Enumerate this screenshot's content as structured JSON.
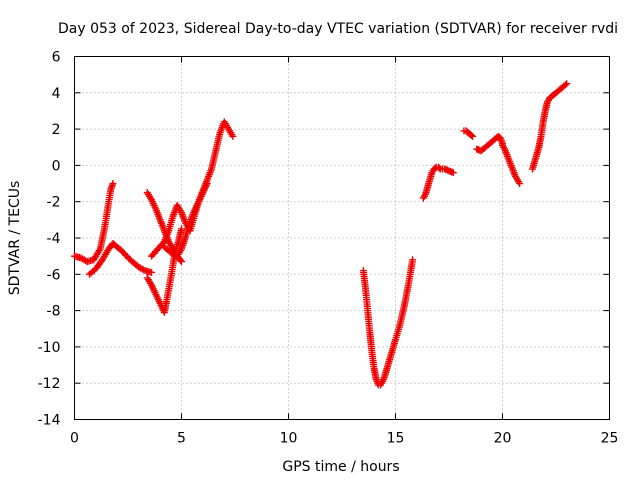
{
  "chart_data": {
    "type": "scatter",
    "title": "Day 053 of 2023, Sidereal Day-to-day VTEC variation (SDTVAR) for receiver rvdi",
    "xlabel": "GPS time / hours",
    "ylabel": "SDTVAR / TECUs",
    "xlim": [
      0,
      25
    ],
    "ylim": [
      -14,
      6
    ],
    "xticks": [
      0,
      5,
      10,
      15,
      20,
      25
    ],
    "yticks": [
      -14,
      -12,
      -10,
      -8,
      -6,
      -4,
      -2,
      0,
      2,
      4,
      6
    ],
    "grid": true,
    "legend": "none",
    "marker": "plus",
    "color": "#ee0000",
    "series": [
      {
        "x": [
          0.0,
          0.3,
          0.6,
          0.9,
          1.2,
          1.4,
          1.6,
          1.7,
          1.8
        ],
        "y": [
          -5.0,
          -5.1,
          -5.3,
          -5.2,
          -4.6,
          -3.5,
          -2.0,
          -1.3,
          -1.0
        ]
      },
      {
        "x": [
          0.7,
          1.0,
          1.3,
          1.6,
          1.8,
          2.2,
          2.6,
          3.0,
          3.3,
          3.6
        ],
        "y": [
          -6.0,
          -5.7,
          -5.2,
          -4.6,
          -4.3,
          -4.7,
          -5.2,
          -5.6,
          -5.8,
          -5.9
        ]
      },
      {
        "x": [
          3.4,
          3.6,
          3.8,
          4.0,
          4.2,
          4.3,
          4.5,
          4.7,
          4.9,
          5.0
        ],
        "y": [
          -6.2,
          -6.6,
          -7.1,
          -7.6,
          -8.1,
          -7.5,
          -6.2,
          -4.8,
          -4.0,
          -3.5
        ]
      },
      {
        "x": [
          3.4,
          3.6,
          3.8,
          4.0,
          4.2,
          4.4,
          4.6,
          4.8,
          5.0
        ],
        "y": [
          -1.5,
          -1.9,
          -2.4,
          -3.0,
          -3.6,
          -4.2,
          -4.6,
          -5.0,
          -5.3
        ]
      },
      {
        "x": [
          3.6,
          3.9,
          4.2,
          4.4,
          4.6,
          4.8,
          5.0,
          5.2,
          5.4,
          5.6,
          5.8,
          6.0,
          6.2
        ],
        "y": [
          -5.0,
          -4.6,
          -4.2,
          -3.6,
          -2.8,
          -2.2,
          -2.6,
          -3.2,
          -3.6,
          -2.8,
          -2.0,
          -1.5,
          -1.0
        ]
      },
      {
        "x": [
          4.2,
          4.5,
          4.8,
          5.0,
          5.2,
          5.4,
          5.6,
          5.8,
          6.0,
          6.2,
          6.4,
          6.6,
          6.8,
          7.0,
          7.2,
          7.4
        ],
        "y": [
          -4.5,
          -4.8,
          -5.0,
          -4.6,
          -3.9,
          -3.1,
          -2.5,
          -2.0,
          -1.4,
          -0.8,
          -0.2,
          0.8,
          1.8,
          2.4,
          2.0,
          1.6
        ]
      },
      {
        "x": [
          13.5,
          13.6,
          13.7,
          13.8,
          13.9,
          14.0,
          14.1,
          14.2,
          14.3,
          14.4,
          14.5,
          14.6,
          14.7,
          14.8,
          14.9,
          15.0,
          15.2,
          15.4,
          15.6,
          15.8
        ],
        "y": [
          -5.8,
          -6.8,
          -8.0,
          -9.2,
          -10.3,
          -11.2,
          -11.8,
          -12.1,
          -12.1,
          -11.9,
          -11.6,
          -11.2,
          -10.8,
          -10.4,
          -10.0,
          -9.6,
          -8.8,
          -7.8,
          -6.6,
          -5.2
        ]
      },
      {
        "x": [
          16.3,
          16.4,
          16.5,
          16.6,
          16.7,
          16.8,
          16.9,
          17.0,
          17.1,
          17.3,
          17.5,
          17.7
        ],
        "y": [
          -1.8,
          -1.6,
          -1.2,
          -0.8,
          -0.4,
          -0.2,
          -0.1,
          -0.1,
          -0.2,
          -0.2,
          -0.3,
          -0.4
        ]
      },
      {
        "x": [
          18.2,
          18.3,
          18.4,
          18.5,
          18.6
        ],
        "y": [
          1.9,
          1.9,
          1.8,
          1.7,
          1.6
        ]
      },
      {
        "x": [
          18.8,
          19.0,
          19.2,
          19.4,
          19.6,
          19.8,
          19.9,
          20.0
        ],
        "y": [
          0.9,
          0.8,
          1.0,
          1.2,
          1.4,
          1.6,
          1.5,
          1.2
        ]
      },
      {
        "x": [
          20.0,
          20.1,
          20.2,
          20.3,
          20.4,
          20.5,
          20.6,
          20.7,
          20.8
        ],
        "y": [
          1.1,
          0.9,
          0.6,
          0.3,
          0.0,
          -0.3,
          -0.6,
          -0.8,
          -1.0
        ]
      },
      {
        "x": [
          21.4,
          21.5,
          21.6,
          21.7,
          21.8,
          21.9,
          22.0,
          22.1,
          22.2,
          22.3,
          22.4,
          22.6,
          22.8,
          23.0
        ],
        "y": [
          -0.2,
          0.2,
          0.6,
          1.0,
          1.6,
          2.4,
          3.0,
          3.5,
          3.7,
          3.8,
          3.9,
          4.1,
          4.3,
          4.5
        ]
      }
    ]
  }
}
